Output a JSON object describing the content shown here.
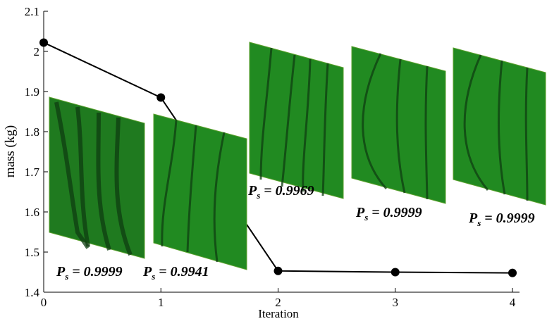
{
  "chart_data": {
    "type": "line",
    "xlabel": "Iteration",
    "ylabel": "mass (kg)",
    "x": [
      0,
      1,
      2,
      3,
      4
    ],
    "series": [
      {
        "color": "#000000",
        "values": [
          2.022,
          1.885,
          1.453,
          1.45,
          1.448
        ]
      }
    ],
    "xlim": [
      0,
      4
    ],
    "xticks": [
      0,
      1,
      2,
      3,
      4
    ],
    "ylim": [
      1.4,
      2.1
    ],
    "yticks": [
      1.4,
      1.5,
      1.6,
      1.7,
      1.8,
      1.9,
      2,
      2.1
    ],
    "annotations": [
      {
        "symbol": "P",
        "subscript": "s",
        "text": "= 0.9999"
      },
      {
        "symbol": "P",
        "subscript": "s",
        "text": "= 0.9941"
      },
      {
        "symbol": "P",
        "subscript": "s",
        "text": "= 0.9969"
      },
      {
        "symbol": "P",
        "subscript": "s",
        "text": "= 0.9999"
      },
      {
        "symbol": "P",
        "subscript": "s",
        "text": "= 0.9999"
      }
    ]
  }
}
